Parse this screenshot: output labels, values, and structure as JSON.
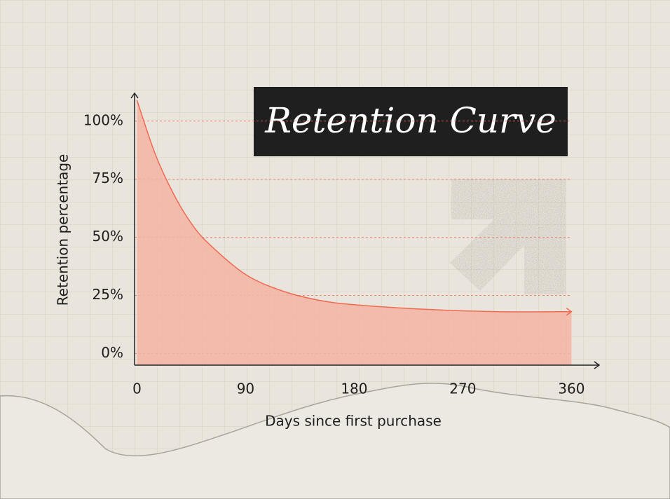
{
  "chart_data": {
    "type": "area",
    "title": "Retention Curve",
    "x_label": "Days since first purchase",
    "y_label": "Retention percentage",
    "x": [
      0,
      15,
      30,
      45,
      60,
      90,
      120,
      150,
      180,
      240,
      300,
      360
    ],
    "values": [
      109,
      86,
      69,
      56,
      47,
      34,
      27,
      23,
      21,
      19,
      18,
      18
    ],
    "color": "#ef6a52",
    "fill_color": "#f3b4a3",
    "xlim": [
      -2,
      383
    ],
    "ylim": [
      -5,
      112
    ],
    "xticks": [
      0,
      90,
      180,
      270,
      360
    ],
    "yticks": [
      {
        "value": 0,
        "label": "0%"
      },
      {
        "value": 25,
        "label": "25%"
      },
      {
        "value": 50,
        "label": "50%"
      },
      {
        "value": 75,
        "label": "75%"
      },
      {
        "value": 100,
        "label": "100%"
      }
    ],
    "grid": true
  }
}
